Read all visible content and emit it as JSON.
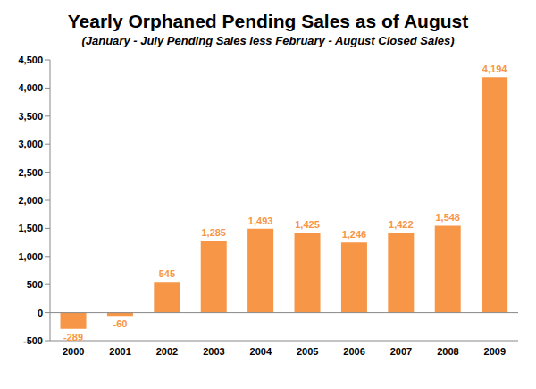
{
  "chart_data": {
    "type": "bar",
    "title": "Yearly Orphaned Pending Sales as of August",
    "subtitle": "(January - July Pending Sales less February - August Closed Sales)",
    "categories": [
      "2000",
      "2001",
      "2002",
      "2003",
      "2004",
      "2005",
      "2006",
      "2007",
      "2008",
      "2009"
    ],
    "values": [
      -289,
      -60,
      545,
      1285,
      1493,
      1425,
      1246,
      1422,
      1548,
      4194
    ],
    "value_labels": [
      "-289",
      "-60",
      "545",
      "1,285",
      "1,493",
      "1,425",
      "1,246",
      "1,422",
      "1,548",
      "4,194"
    ],
    "data_labels": true,
    "color": "#f79646",
    "ylim": [
      -500,
      4500
    ],
    "yticks": [
      -500,
      0,
      500,
      {
        "value": 1000,
        "label": "1,000"
      },
      {
        "value": 1500,
        "label": "1,500"
      },
      {
        "value": 2000,
        "label": "2,000"
      },
      {
        "value": 2500,
        "label": "2,500"
      },
      {
        "value": 3000,
        "label": "3,000"
      },
      {
        "value": 3500,
        "label": "3,500"
      },
      {
        "value": 4000,
        "label": "4,000"
      },
      {
        "value": 4500,
        "label": "4,500"
      }
    ],
    "grid": false
  }
}
